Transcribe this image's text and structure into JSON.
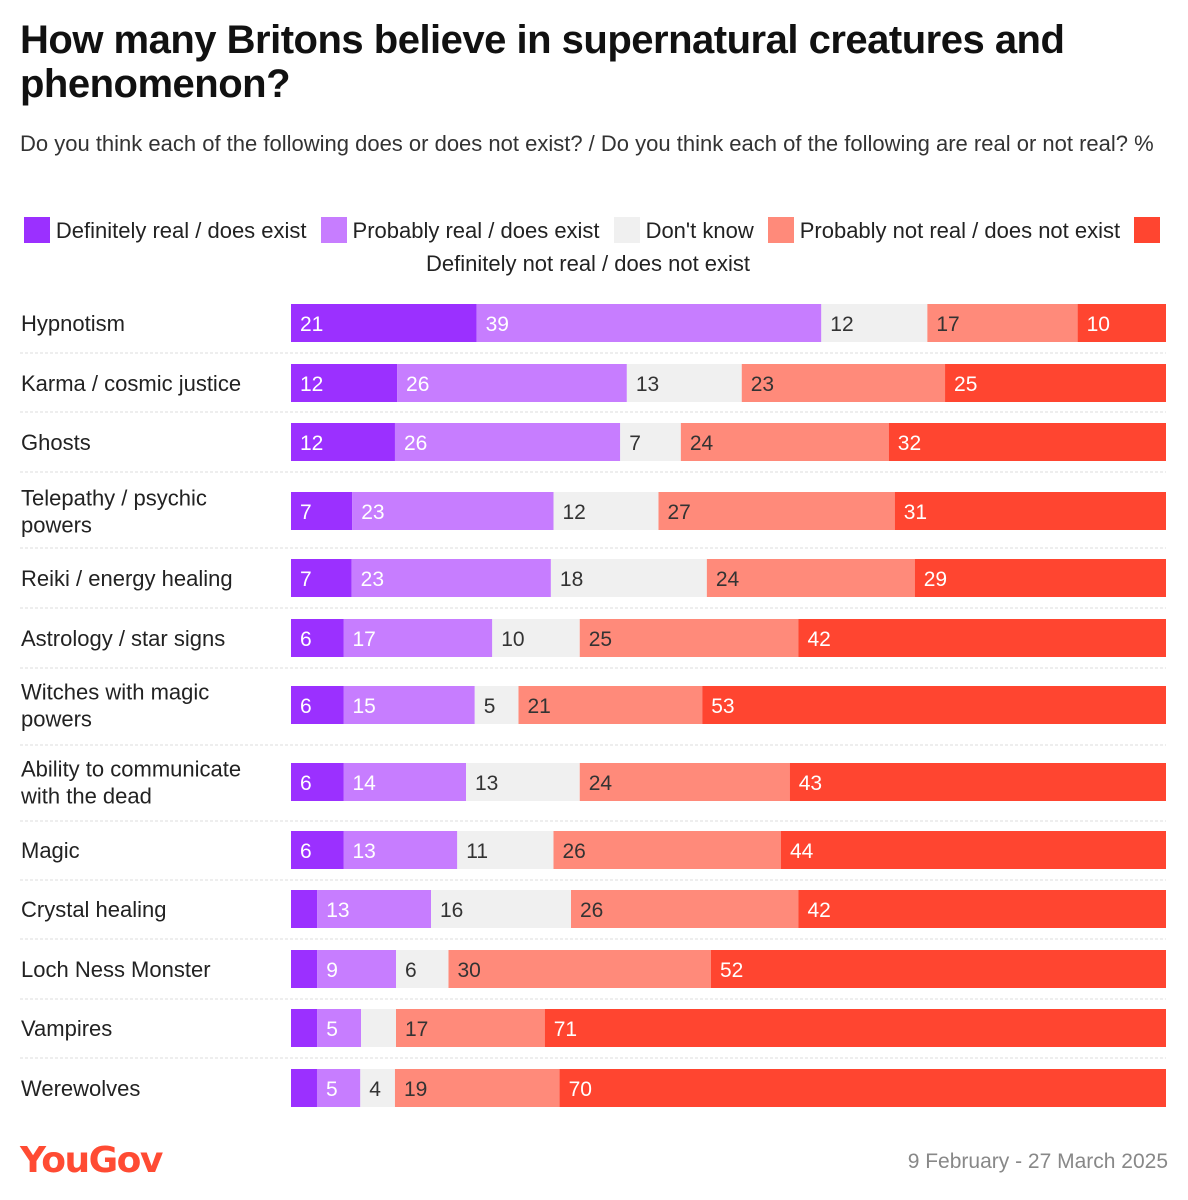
{
  "title": "How many Britons believe in supernatural creatures and phenomenon?",
  "subtitle": "Do you think each of the following does or does not exist? / Do you think each of the following are real or not real? %",
  "footer": {
    "brand": "YouGov",
    "date": "9 February - 27 March 2025"
  },
  "chart_data": {
    "type": "bar",
    "orientation": "horizontal",
    "stacked": true,
    "categories": [
      "Hypnotism",
      "Karma / cosmic justice",
      "Ghosts",
      "Telepathy / psychic powers",
      "Reiki / energy healing",
      "Astrology / star signs",
      "Witches with magic powers",
      "Ability to communicate with the dead",
      "Magic",
      "Crystal healing",
      "Loch Ness Monster",
      "Vampires",
      "Werewolves"
    ],
    "series": [
      {
        "name": "Definitely real / does exist",
        "color": "#9b30ff",
        "values": [
          21,
          12,
          12,
          7,
          7,
          6,
          6,
          6,
          6,
          3,
          3,
          3,
          3
        ]
      },
      {
        "name": "Probably real / does exist",
        "color": "#c77dff",
        "values": [
          39,
          26,
          26,
          23,
          23,
          17,
          15,
          14,
          13,
          13,
          9,
          5,
          5
        ]
      },
      {
        "name": "Don't know",
        "color": "#f0f0f0",
        "values": [
          12,
          13,
          7,
          12,
          18,
          10,
          5,
          13,
          11,
          16,
          6,
          4,
          4
        ]
      },
      {
        "name": "Probably not real / does not exist",
        "color": "#ff8a7a",
        "values": [
          17,
          23,
          24,
          27,
          24,
          25,
          21,
          24,
          26,
          26,
          30,
          17,
          19
        ]
      },
      {
        "name": "Definitely not real / does not exist",
        "color": "#ff4530",
        "values": [
          10,
          25,
          32,
          31,
          29,
          42,
          53,
          43,
          44,
          42,
          52,
          71,
          70
        ]
      }
    ],
    "label_threshold": 4,
    "hidden_labels": {
      "2": [
        11
      ]
    }
  }
}
